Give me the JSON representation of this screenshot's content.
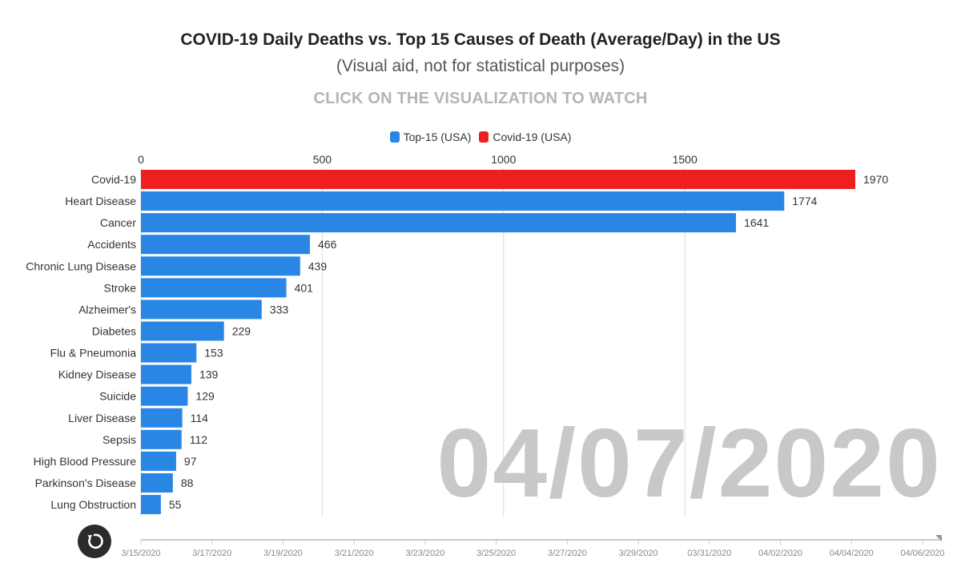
{
  "title": "COVID-19 Daily Deaths vs. Top 15 Causes of Death (Average/Day) in the US",
  "subtitle": "(Visual aid, not for statistical purposes)",
  "cta": "CLICK ON THE VISUALIZATION TO WATCH",
  "current_date": "04/07/2020",
  "legend": [
    {
      "label": "Top-15 (USA)",
      "color": "#2a86e5"
    },
    {
      "label": "Covid-19 (USA)",
      "color": "#ee1f1f"
    }
  ],
  "colors": {
    "top15": "#2a86e5",
    "covid": "#ee1f1f",
    "grid": "#dddddd",
    "watermark": "#c8c8c8",
    "replay": "#2b2b2b"
  },
  "icons": {
    "replay": "replay-icon"
  },
  "chart_data": {
    "type": "bar",
    "orientation": "horizontal",
    "title": "COVID-19 Daily Deaths vs. Top 15 Causes of Death (Average/Day) in the US",
    "categories": [
      "Covid-19",
      "Heart Disease",
      "Cancer",
      "Accidents",
      "Chronic Lung Disease",
      "Stroke",
      "Alzheimer's",
      "Diabetes",
      "Flu & Pneumonia",
      "Kidney Disease",
      "Suicide",
      "Liver Disease",
      "Sepsis",
      "High Blood Pressure",
      "Parkinson's Disease",
      "Lung Obstruction"
    ],
    "values": [
      1970,
      1774,
      1641,
      466,
      439,
      401,
      333,
      229,
      153,
      139,
      129,
      114,
      112,
      97,
      88,
      55
    ],
    "series_of": [
      "Covid-19 (USA)",
      "Top-15 (USA)",
      "Top-15 (USA)",
      "Top-15 (USA)",
      "Top-15 (USA)",
      "Top-15 (USA)",
      "Top-15 (USA)",
      "Top-15 (USA)",
      "Top-15 (USA)",
      "Top-15 (USA)",
      "Top-15 (USA)",
      "Top-15 (USA)",
      "Top-15 (USA)",
      "Top-15 (USA)",
      "Top-15 (USA)",
      "Top-15 (USA)"
    ],
    "xlim": [
      0,
      2000
    ],
    "x_ticks": [
      0,
      500,
      1000,
      1500
    ],
    "axis_position": "top",
    "grid": true,
    "timeline": {
      "labels": [
        "3/15/2020",
        "3/17/2020",
        "3/19/2020",
        "3/21/2020",
        "3/23/2020",
        "3/25/2020",
        "3/27/2020",
        "3/29/2020",
        "03/31/2020",
        "04/02/2020",
        "04/04/2020",
        "04/06/2020"
      ],
      "position": 1.0
    }
  }
}
